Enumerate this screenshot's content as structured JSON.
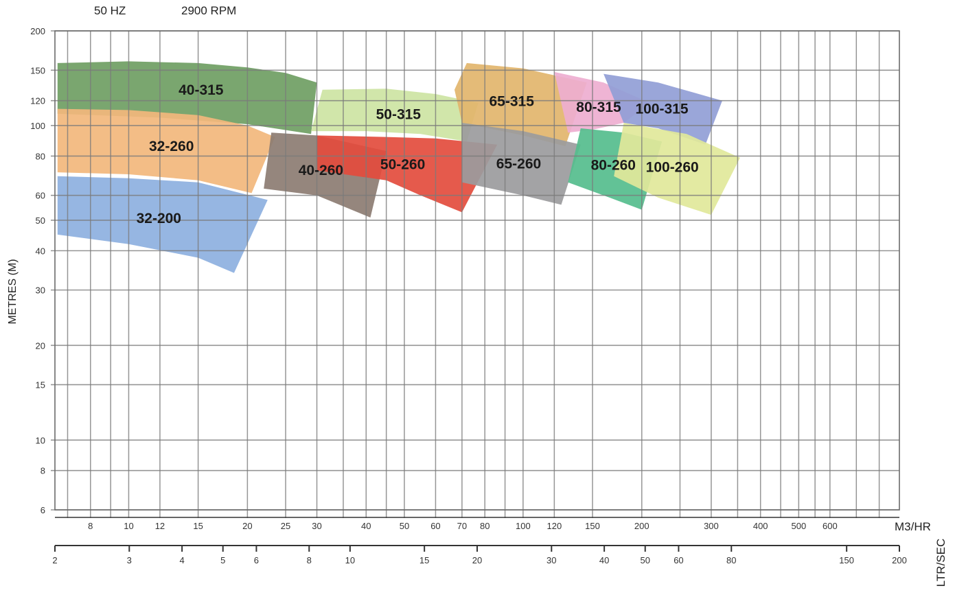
{
  "header": {
    "frequency": "50 HZ",
    "speed": "2900 RPM"
  },
  "chart_data": {
    "type": "area",
    "xscale": "log",
    "yscale": "log",
    "xlabel": "M3/HR",
    "x2label": "LTR/SEC",
    "ylabel": "METRES (M)",
    "xlim": [
      6.5,
      900
    ],
    "ylim": [
      6,
      200
    ],
    "yticks": [
      6,
      8,
      10,
      15,
      20,
      30,
      40,
      50,
      60,
      80,
      100,
      120,
      150,
      200
    ],
    "xticks": [
      8,
      10,
      12,
      15,
      20,
      25,
      30,
      40,
      50,
      60,
      70,
      80,
      100,
      120,
      150,
      200,
      300,
      400,
      500,
      600
    ],
    "x2ticks": [
      2,
      3,
      4,
      5,
      6,
      8,
      10,
      15,
      20,
      30,
      40,
      50,
      60,
      80,
      150,
      200
    ],
    "grid": true,
    "regions": [
      {
        "name": "40-315",
        "color": "#6f9e63",
        "points": [
          [
            6.6,
            158
          ],
          [
            10,
            160
          ],
          [
            15,
            158
          ],
          [
            20,
            153
          ],
          [
            25,
            147
          ],
          [
            30,
            137
          ],
          [
            29,
            94
          ],
          [
            20,
            101
          ],
          [
            12,
            106
          ],
          [
            6.6,
            109
          ]
        ]
      },
      {
        "name": "32-260",
        "color": "#f2b77c",
        "points": [
          [
            6.6,
            113
          ],
          [
            10,
            112
          ],
          [
            15,
            108
          ],
          [
            20,
            100
          ],
          [
            23.5,
            92
          ],
          [
            20.5,
            61
          ],
          [
            15,
            67
          ],
          [
            10,
            70
          ],
          [
            6.6,
            71
          ]
        ]
      },
      {
        "name": "40-260",
        "color": "#8c7c72",
        "points": [
          [
            23,
            95
          ],
          [
            30,
            93
          ],
          [
            45,
            83
          ],
          [
            41,
            51
          ],
          [
            30,
            60
          ],
          [
            22,
            63
          ]
        ]
      },
      {
        "name": "32-200",
        "color": "#8db0e0",
        "points": [
          [
            6.6,
            69
          ],
          [
            10,
            68
          ],
          [
            15,
            66
          ],
          [
            22.5,
            58
          ],
          [
            18.5,
            34
          ],
          [
            15,
            38
          ],
          [
            10,
            42
          ],
          [
            6.6,
            45
          ]
        ]
      },
      {
        "name": "50-315",
        "color": "#cde4a3",
        "points": [
          [
            31,
            130
          ],
          [
            45,
            131
          ],
          [
            60,
            126
          ],
          [
            77,
            118
          ],
          [
            72,
            89
          ],
          [
            55,
            94
          ],
          [
            40,
            96
          ],
          [
            29,
            96
          ]
        ]
      },
      {
        "name": "50-260",
        "color": "#e34c3d",
        "points": [
          [
            30,
            93
          ],
          [
            45,
            92
          ],
          [
            60,
            91
          ],
          [
            86,
            87
          ],
          [
            70,
            53
          ],
          [
            55,
            60
          ],
          [
            45,
            67
          ],
          [
            30,
            72
          ]
        ]
      },
      {
        "name": "65-315",
        "color": "#e2b56c",
        "points": [
          [
            72,
            158
          ],
          [
            100,
            152
          ],
          [
            145,
            137
          ],
          [
            128,
            86
          ],
          [
            100,
            93
          ],
          [
            70,
            102
          ],
          [
            67,
            130
          ]
        ]
      },
      {
        "name": "80-315",
        "color": "#eeaed0",
        "points": [
          [
            120,
            148
          ],
          [
            160,
            137
          ],
          [
            210,
            118
          ],
          [
            180,
            102
          ],
          [
            150,
            97
          ],
          [
            130,
            95
          ]
        ]
      },
      {
        "name": "100-315",
        "color": "#919ed6",
        "points": [
          [
            160,
            146
          ],
          [
            220,
            137
          ],
          [
            320,
            120
          ],
          [
            290,
            87
          ],
          [
            220,
            98
          ],
          [
            180,
            102
          ]
        ]
      },
      {
        "name": "65-260",
        "color": "#9b9b9d",
        "points": [
          [
            70,
            102
          ],
          [
            100,
            96
          ],
          [
            140,
            87
          ],
          [
            125,
            56
          ],
          [
            100,
            60
          ],
          [
            70,
            66
          ]
        ]
      },
      {
        "name": "80-260",
        "color": "#55bd8d",
        "points": [
          [
            140,
            98
          ],
          [
            180,
            95
          ],
          [
            225,
            89
          ],
          [
            200,
            54
          ],
          [
            160,
            60
          ],
          [
            130,
            66
          ]
        ]
      },
      {
        "name": "100-260",
        "color": "#e1e89a",
        "points": [
          [
            180,
            102
          ],
          [
            260,
            94
          ],
          [
            355,
            79
          ],
          [
            300,
            52
          ],
          [
            220,
            59
          ],
          [
            170,
            69
          ]
        ]
      }
    ]
  }
}
